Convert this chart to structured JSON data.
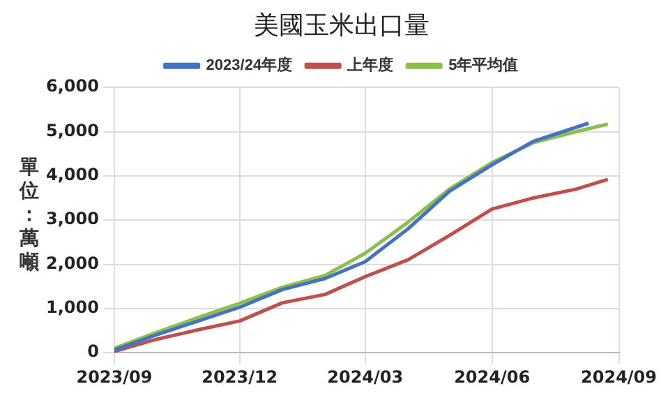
{
  "chart_data": {
    "type": "line",
    "title": "美國玉米出口量",
    "ylabel": "單位：萬噸",
    "x": [
      "2023-09-01",
      "2023-10-01",
      "2023-11-01",
      "2023-12-01",
      "2024-01-01",
      "2024-02-01",
      "2024-03-01",
      "2024-04-01",
      "2024-05-01",
      "2024-06-01",
      "2024-07-01",
      "2024-08-01",
      "2024-08-24"
    ],
    "series": [
      {
        "name": "2023/24年度",
        "color": "#4472c4",
        "x": [
          "2023-09-01",
          "2023-10-01",
          "2023-11-01",
          "2023-12-01",
          "2024-01-01",
          "2024-02-01",
          "2024-03-01",
          "2024-04-01",
          "2024-05-01",
          "2024-06-01",
          "2024-07-01",
          "2024-08-10"
        ],
        "values": [
          60,
          400,
          720,
          1030,
          1430,
          1680,
          2060,
          2800,
          3650,
          4250,
          4780,
          5190
        ]
      },
      {
        "name": "上年度",
        "color": "#c0504d",
        "values": [
          30,
          300,
          520,
          720,
          1130,
          1320,
          1720,
          2100,
          2650,
          3250,
          3500,
          3700,
          3920
        ]
      },
      {
        "name": "5年平均值",
        "color": "#8cbf4b",
        "values": [
          100,
          450,
          800,
          1120,
          1480,
          1750,
          2250,
          2950,
          3700,
          4300,
          4750,
          5000,
          5170
        ]
      }
    ],
    "xlim": [
      "2023-09-01",
      "2024-09-01"
    ],
    "xticks": [
      {
        "value": "2023-09-01",
        "label": "2023/09"
      },
      {
        "value": "2023-12-01",
        "label": "2023/12"
      },
      {
        "value": "2024-03-01",
        "label": "2024/03"
      },
      {
        "value": "2024-06-01",
        "label": "2024/06"
      },
      {
        "value": "2024-09-01",
        "label": "2024/09"
      }
    ],
    "ylim": [
      0,
      6000
    ],
    "yticks": [
      {
        "value": 0,
        "label": "0"
      },
      {
        "value": 1000,
        "label": "1,000"
      },
      {
        "value": 2000,
        "label": "2,000"
      },
      {
        "value": 3000,
        "label": "3,000"
      },
      {
        "value": 4000,
        "label": "4,000"
      },
      {
        "value": 5000,
        "label": "5,000"
      },
      {
        "value": 6000,
        "label": "6,000"
      }
    ],
    "grid": true,
    "legend": "top",
    "marker": "none",
    "line_style": "solid"
  }
}
